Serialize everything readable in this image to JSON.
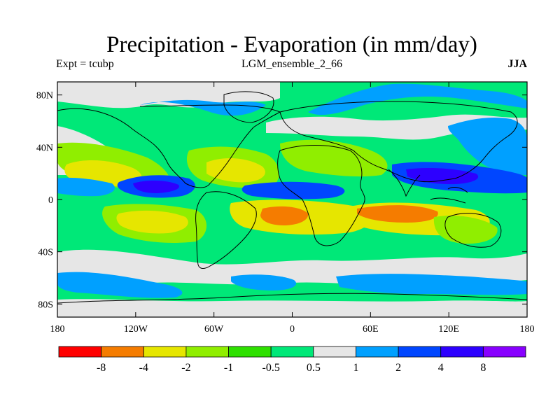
{
  "title": "Precipitation - Evaporation (in mm/day)",
  "subtitle": {
    "left": "Expt = tcubp",
    "center": "LGM_ensemble_2_66",
    "right": "JJA"
  },
  "map": {
    "lon_range": [
      -180,
      180
    ],
    "lat_range": [
      -90,
      90
    ],
    "lat_ticks": [
      {
        "value": 80,
        "label": "80N"
      },
      {
        "value": 40,
        "label": "40N"
      },
      {
        "value": 0,
        "label": "0"
      },
      {
        "value": -40,
        "label": "40S"
      },
      {
        "value": -80,
        "label": "80S"
      }
    ],
    "lon_ticks": [
      {
        "value": -180,
        "label": "180"
      },
      {
        "value": -120,
        "label": "120W"
      },
      {
        "value": -60,
        "label": "60W"
      },
      {
        "value": 0,
        "label": "0"
      },
      {
        "value": 60,
        "label": "60E"
      },
      {
        "value": 120,
        "label": "120E"
      },
      {
        "value": 180,
        "label": "180"
      }
    ]
  },
  "colorbar": {
    "colors": [
      "#ff0000",
      "#f57c00",
      "#e6e600",
      "#90ee00",
      "#2ee000",
      "#00e878",
      "#e6e6e6",
      "#00a0ff",
      "#0046ff",
      "#2d00ff",
      "#8800ff"
    ],
    "labels": [
      "-8",
      "-4",
      "-2",
      "-1",
      "-0.5",
      "0.5",
      "1",
      "2",
      "4",
      "8"
    ]
  },
  "colors": {
    "background_field": "#00e878",
    "frame": "#000000",
    "coastline": "#000000"
  }
}
